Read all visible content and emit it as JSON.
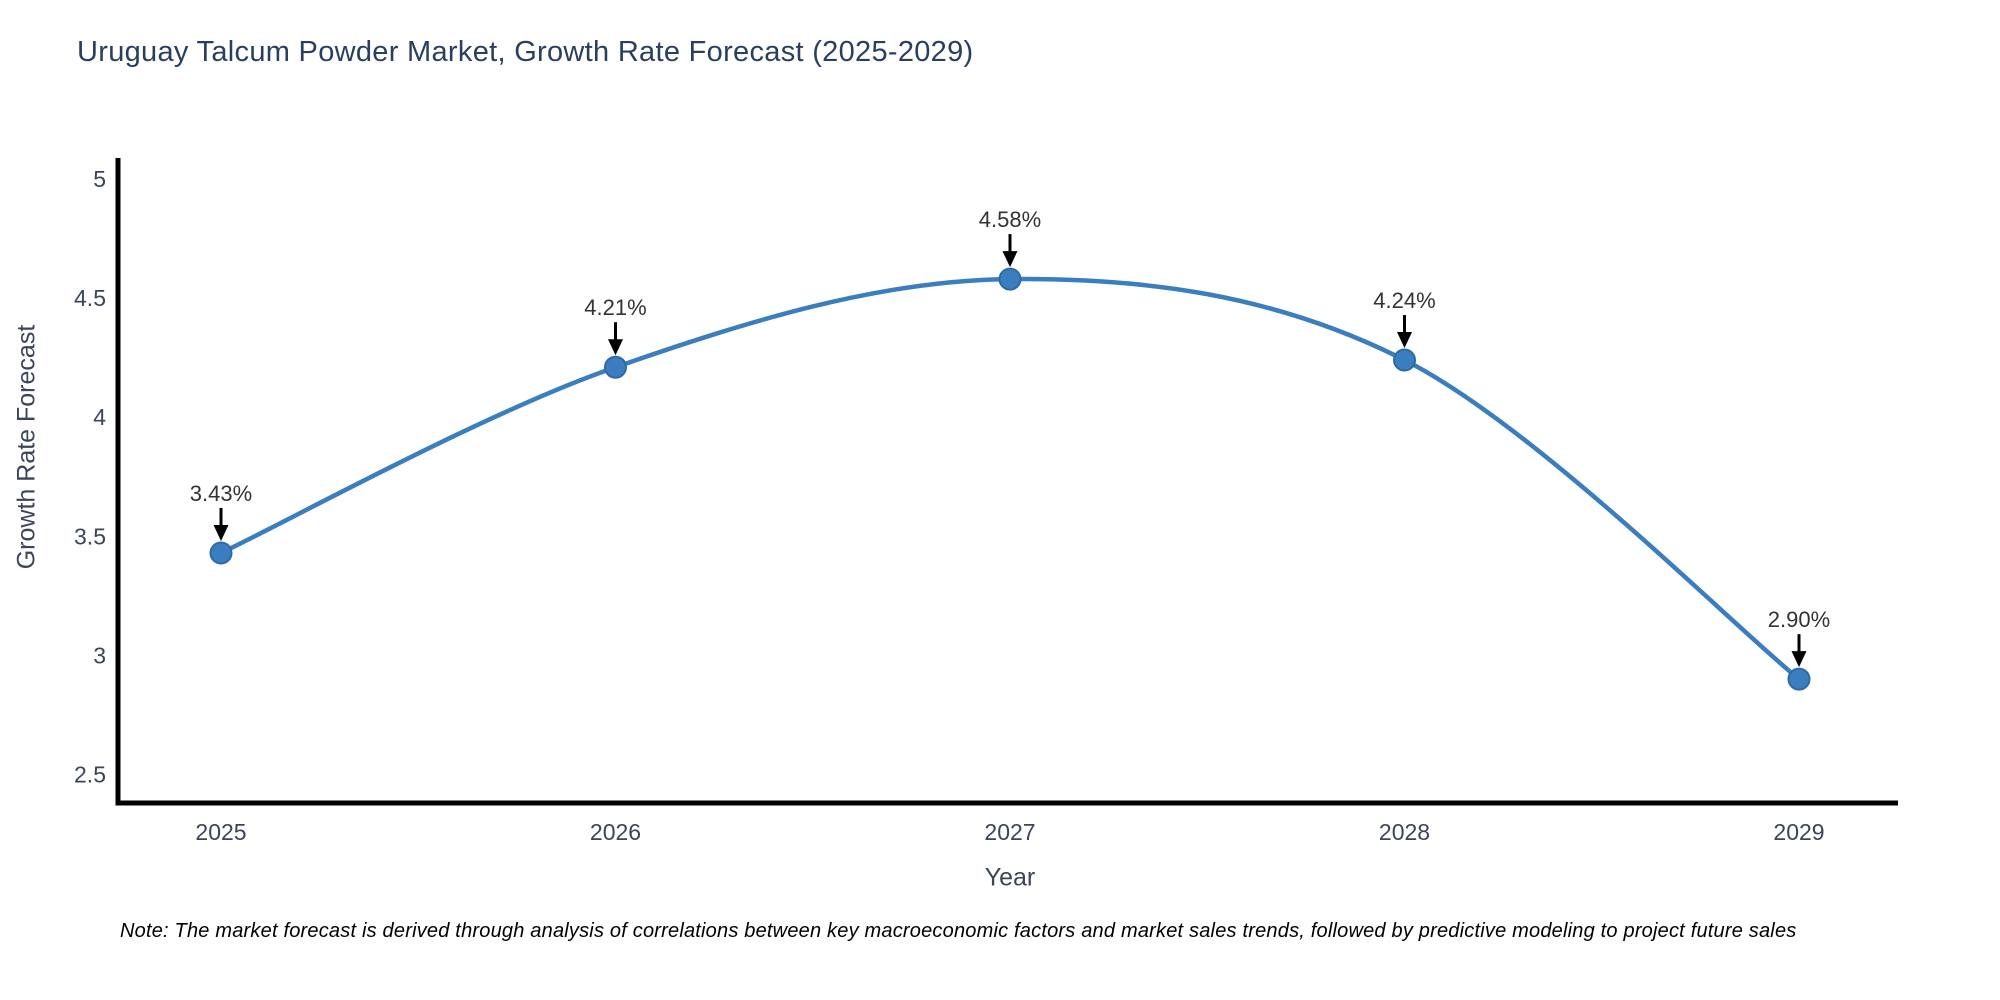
{
  "chart_data": {
    "type": "line",
    "title": "Uruguay Talcum Powder Market, Growth Rate Forecast (2025-2029)",
    "xlabel": "Year",
    "ylabel": "Growth Rate Forecast",
    "categories": [
      "2025",
      "2026",
      "2027",
      "2028",
      "2029"
    ],
    "values": [
      3.43,
      4.21,
      4.58,
      4.24,
      2.9
    ],
    "point_labels": [
      "3.43%",
      "4.21%",
      "4.58%",
      "4.24%",
      "2.90%"
    ],
    "ytick_values": [
      2.5,
      3,
      3.5,
      4,
      4.5,
      5
    ],
    "ytick_labels": [
      "2.5",
      "3",
      "3.5",
      "4",
      "4.5",
      "5"
    ],
    "ylim": [
      2.38,
      5.08
    ],
    "line_shape": "spline",
    "grid": false,
    "legend": false,
    "colors": {
      "line": "#3a7ebf",
      "marker_fill": "#3a7ebf",
      "marker_edge": "#2f6ba3",
      "axis_line": "#000000",
      "title_text": "#2a3f5f",
      "tick_text": "#3b4559",
      "annotation_text": "#333333",
      "annotation_arrow": "#000000"
    }
  },
  "footnote": {
    "text": "Note: The market forecast is derived through analysis of correlations between key macroeconomic factors and market sales trends, followed by predictive modeling to project future sales"
  }
}
